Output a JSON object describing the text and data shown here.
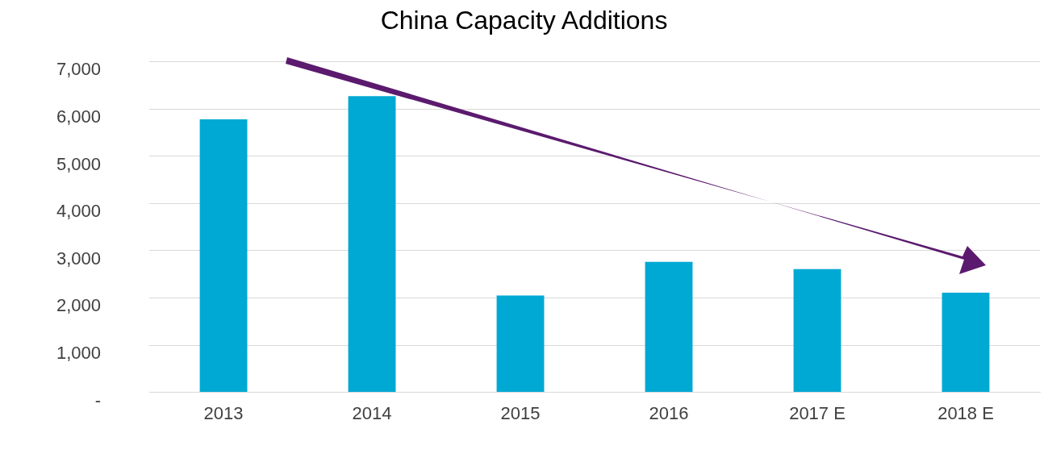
{
  "chart_data": {
    "type": "bar",
    "title": "China Capacity Additions",
    "categories": [
      "2013",
      "2014",
      "2015",
      "2016",
      "2017 E",
      "2018 E"
    ],
    "values": [
      5780,
      6270,
      2050,
      2760,
      2610,
      2110
    ],
    "color": "#00a9d3",
    "ylim": [
      0,
      7000
    ],
    "yticks": [
      {
        "value": 0,
        "label": "-"
      },
      {
        "value": 1000,
        "label": "1,000"
      },
      {
        "value": 2000,
        "label": "2,000"
      },
      {
        "value": 3000,
        "label": "3,000"
      },
      {
        "value": 4000,
        "label": "4,000"
      },
      {
        "value": 5000,
        "label": "5,000"
      },
      {
        "value": 6000,
        "label": "6,000"
      },
      {
        "value": 7000,
        "label": "7,000"
      }
    ],
    "grid": "y",
    "legend": false
  }
}
